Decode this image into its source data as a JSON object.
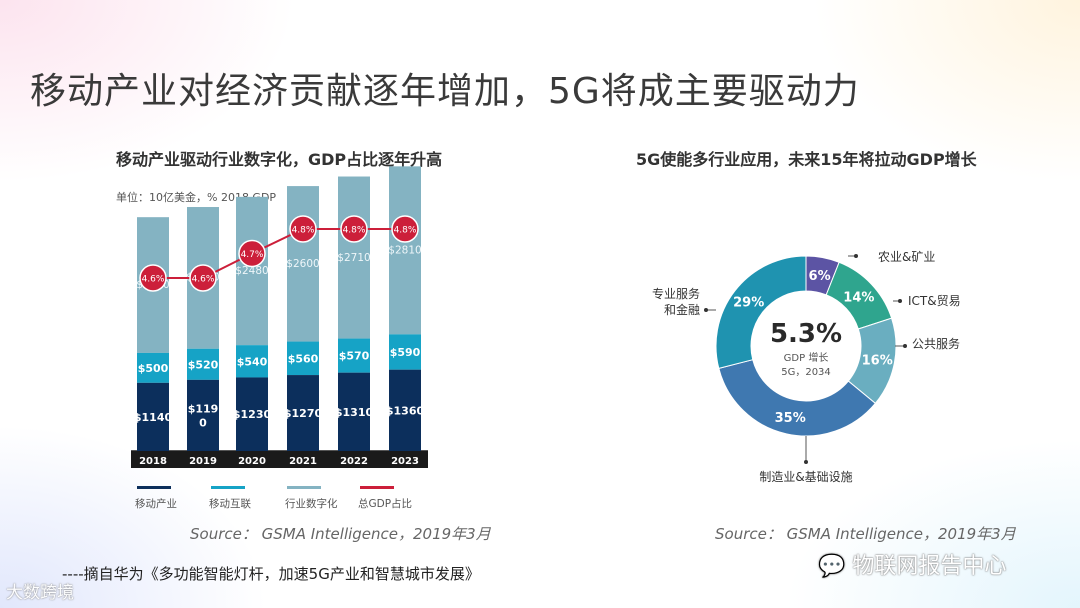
{
  "title": "移动产业对经济贡献逐年增加，5G将成主要驱动力",
  "colors": {
    "mobile_industry": "#0c2f5c",
    "mobile_internet": "#16a3c6",
    "industry_digital": "#84b3c2",
    "gdp_share": "#cc1f3a",
    "pie_agri": "#5c54a4",
    "pie_ict": "#2fa58e",
    "pie_public": "#6aaec0",
    "pie_mfg": "#3f78b0",
    "pie_finance": "#1f93b0"
  },
  "chart_data": [
    {
      "type": "bar",
      "title": "移动产业驱动行业数字化，GDP占比逐年升高",
      "unit_note": "单位：10亿美金，% 2018 GDP",
      "categories": [
        "2018",
        "2019",
        "2020",
        "2021",
        "2022",
        "2023"
      ],
      "series": [
        {
          "name": "移动产业",
          "values": [
            1140,
            1190,
            1230,
            1270,
            1310,
            1360
          ],
          "labels": [
            "$1140",
            "$119\n0",
            "$1230",
            "$1270",
            "$1310",
            "$1360"
          ]
        },
        {
          "name": "移动互联",
          "values": [
            500,
            520,
            540,
            560,
            570,
            590
          ],
          "labels": [
            "$500",
            "$520",
            "$540",
            "$560",
            "$570",
            "$590"
          ]
        },
        {
          "name": "行业数字化",
          "values": [
            2270,
            2370,
            2480,
            2600,
            2710,
            2810
          ],
          "labels": [
            "$2270",
            "$2370",
            "$2480",
            "$2600",
            "$2710",
            "$2810"
          ]
        },
        {
          "name": "总GDP占比",
          "values": [
            4.6,
            4.6,
            4.7,
            4.8,
            4.8,
            4.8
          ],
          "labels": [
            "4.6%",
            "4.6%",
            "4.7%",
            "4.8%",
            "4.8%",
            "4.8%"
          ]
        }
      ],
      "source": "Source： GSMA Intelligence，2019年3月"
    },
    {
      "type": "pie",
      "title": "5G使能多行业应用，未来15年将拉动GDP增长",
      "center_value": "5.3%",
      "center_label1": "GDP 增长",
      "center_label2": "5G，2034",
      "slices": [
        {
          "name": "农业&矿业",
          "value": 6,
          "label": "6%"
        },
        {
          "name": "ICT&贸易",
          "value": 14,
          "label": "14%"
        },
        {
          "name": "公共服务",
          "value": 16,
          "label": "16%"
        },
        {
          "name": "制造业&基础设施",
          "value": 35,
          "label": "35%"
        },
        {
          "name": "专业服务\n和金融",
          "value": 29,
          "label": "29%"
        }
      ],
      "source": "Source： GSMA Intelligence，2019年3月"
    }
  ],
  "footnote": "----摘自华为《多功能智能灯杆，加速5G产业和智慧城市发展》",
  "watermark_left": "大数跨境",
  "watermark_right": "物联网报告中心"
}
